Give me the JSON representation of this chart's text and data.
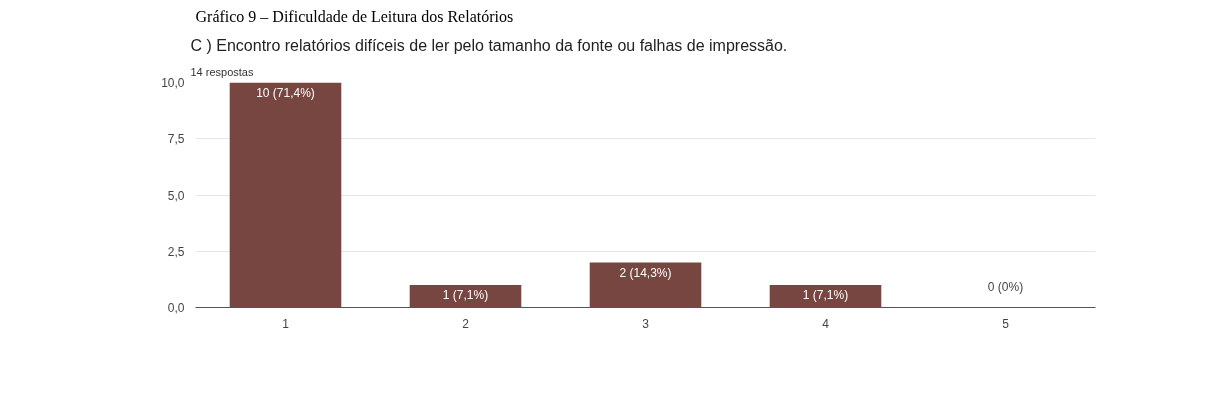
{
  "chart_data": {
    "type": "bar",
    "title": "C ) Encontro relatórios difíceis de ler pelo tamanho da fonte ou falhas de impressão.",
    "subtitle": "14 respostas",
    "annotations": [
      "Gráfico 9 – Dificuldade de Leitura dos Relatórios"
    ],
    "categories": [
      "1",
      "2",
      "3",
      "4",
      "5"
    ],
    "values": [
      10,
      1,
      2,
      1,
      0
    ],
    "value_labels": [
      "10 (71,4%)",
      "1 (7,1%)",
      "2 (14,3%)",
      "1 (7,1%)",
      "0 (0%)"
    ],
    "color": "#774640",
    "ylim": [
      0,
      10
    ],
    "yticks": [
      {
        "value": 0,
        "label": "0,0"
      },
      {
        "value": 2.5,
        "label": "2,5"
      },
      {
        "value": 5,
        "label": "5,0"
      },
      {
        "value": 7.5,
        "label": "7,5"
      },
      {
        "value": 10,
        "label": "10,0"
      }
    ],
    "grid": "y"
  }
}
